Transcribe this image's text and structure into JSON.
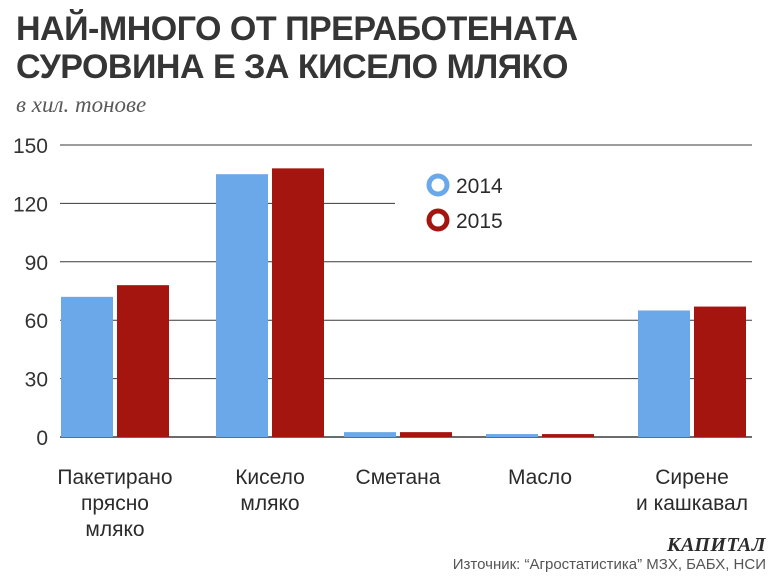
{
  "title_line1": "НАЙ-МНОГО ОТ ПРЕРАБОТЕНАТА",
  "title_line2": "СУРОВИНА Е ЗА КИСЕЛО МЛЯКО",
  "subtitle": "в хил. тонове",
  "brand": "КАПИТАЛ",
  "source": "Източник: “Агростатистика” МЗХ, БАБХ, НСИ",
  "colors": {
    "s2014": "#6aa8ea",
    "s2015": "#a4150f",
    "grid": "#3a3a3a"
  },
  "chart_data": {
    "type": "bar",
    "categories": [
      [
        "Пакетирано",
        "прясно",
        "мляко"
      ],
      [
        "Кисело",
        "мляко"
      ],
      [
        "Сметана"
      ],
      [
        "Масло"
      ],
      [
        "Сирене",
        "и кашкавал"
      ]
    ],
    "series": [
      {
        "name": "2014",
        "values": [
          72,
          135,
          2.5,
          1.5,
          65
        ]
      },
      {
        "name": "2015",
        "values": [
          78,
          138,
          2.5,
          1.5,
          67
        ]
      }
    ],
    "yticks": [
      0,
      30,
      60,
      90,
      120,
      150
    ],
    "ylim": [
      0,
      150
    ],
    "grid": true,
    "legend": "top-center"
  }
}
